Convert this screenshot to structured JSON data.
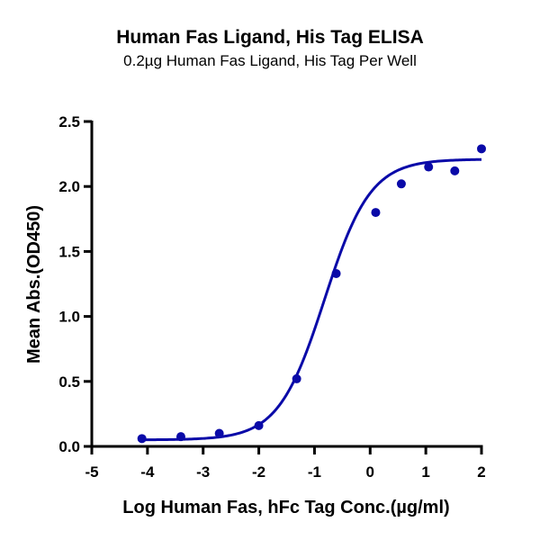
{
  "chart_data": {
    "type": "scatter",
    "title": "Human Fas Ligand, His Tag ELISA",
    "subtitle": "0.2µg Human Fas Ligand, His Tag Per Well",
    "xlabel": "Log Human Fas, hFc Tag Conc.(µg/ml)",
    "ylabel": "Mean Abs.(OD450)",
    "xlim": [
      -5,
      2
    ],
    "ylim": [
      0,
      2.5
    ],
    "xticks": [
      "-5",
      "-4",
      "-3",
      "-2",
      "-1",
      "0",
      "1",
      "2"
    ],
    "yticks": [
      "0.0",
      "0.5",
      "1.0",
      "1.5",
      "2.0",
      "2.5"
    ],
    "grid": false,
    "legend": null,
    "series": [
      {
        "name": "Mean Abs.(OD450)",
        "color": "#0a0aa8",
        "x": [
          -4.1,
          -3.4,
          -2.71,
          -2.0,
          -1.32,
          -0.61,
          0.1,
          0.56,
          1.05,
          1.52,
          2.0
        ],
        "y": [
          0.06,
          0.075,
          0.1,
          0.16,
          0.52,
          1.33,
          1.8,
          2.02,
          2.15,
          2.12,
          2.29
        ]
      }
    ],
    "fit": {
      "type": "4PL",
      "bottom": 0.05,
      "top": 2.21,
      "log_ec50": -0.82,
      "hill": 1.05,
      "x_range": [
        -4.1,
        2.0
      ],
      "color": "#0a0aa8"
    }
  }
}
